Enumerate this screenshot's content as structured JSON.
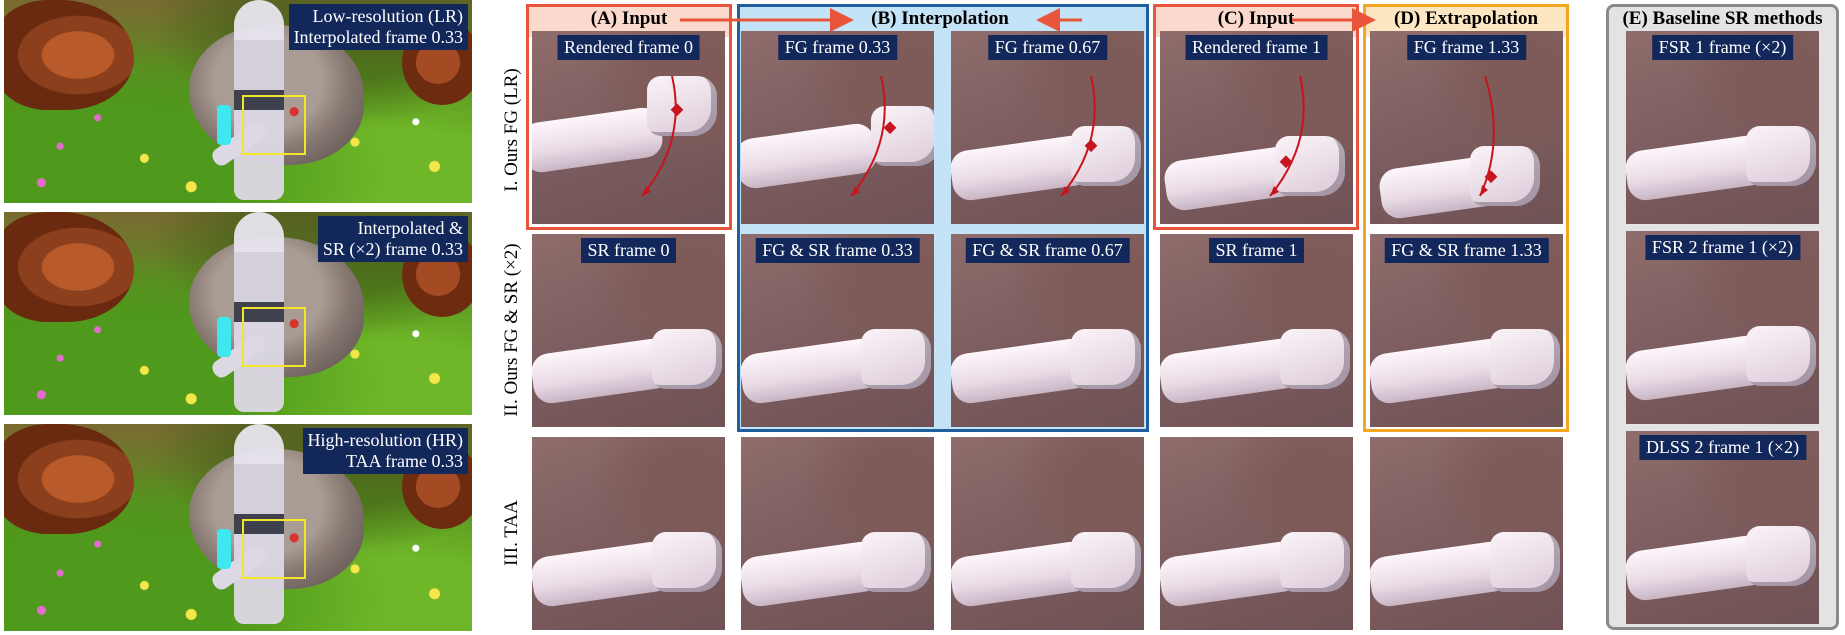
{
  "scenes": [
    {
      "line1": "Low-resolution (LR)",
      "line2": "Interpolated frame 0.33"
    },
    {
      "line1": "Interpolated &",
      "line2": "SR (×2) frame 0.33"
    },
    {
      "line1": "High-resolution (HR)",
      "line2": "TAA frame 0.33"
    }
  ],
  "headers": {
    "A": "(A) Input",
    "B": "(B)  Interpolation",
    "C": "(C) Input",
    "D": "(D) Extrapolation",
    "E": "(E) Baseline SR methods"
  },
  "row_labels": {
    "r1": "I. Ours FG (LR)",
    "r2": "II. Ours FG & SR (×2)",
    "r3": "III. TAA"
  },
  "row1": [
    "Rendered frame 0",
    "FG frame 0.33",
    "FG frame 0.67",
    "Rendered frame 1",
    "FG frame 1.33"
  ],
  "row2": [
    "SR frame 0",
    "FG & SR frame 0.33",
    "FG & SR frame 0.67",
    "SR frame 1",
    "FG & SR frame 1.33"
  ],
  "baseline": [
    "FSR 1 frame (×2)",
    "FSR 2 frame 1 (×2)",
    "DLSS 2 frame 1 (×2)"
  ],
  "colors": {
    "input_red": "#e8553a",
    "input_fill": "#fbd9cc",
    "interp_blue": "#1f5f9e",
    "interp_fill": "#c5e3f6",
    "extrap_orange": "#f4a620",
    "extrap_fill": "#fde7c2",
    "baseline_gray": "#8a8a8a",
    "baseline_fill": "#e3e3e3",
    "label_bg": "#13285a",
    "motion_arrow": "#c8141c"
  }
}
